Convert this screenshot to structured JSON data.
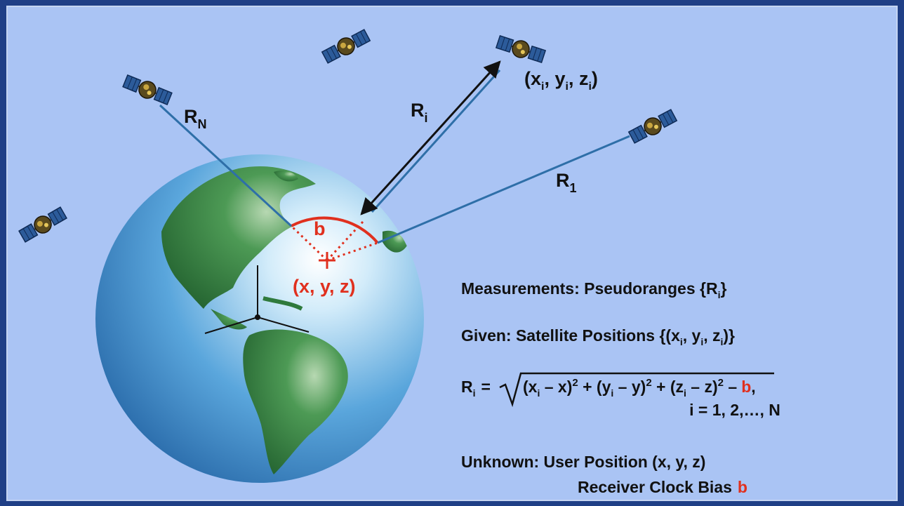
{
  "colors": {
    "frame": "#1f3f86",
    "panel": "#aac4f4",
    "ocean": "#3f8fcf",
    "land": "#2f7a3c",
    "ray": "#2e6fa8",
    "accent": "#e0301e",
    "text": "#111111"
  },
  "satellites": [
    {
      "id": "sat-n",
      "icon": "satellite-icon"
    },
    {
      "id": "sat-top",
      "icon": "satellite-icon"
    },
    {
      "id": "sat-i",
      "icon": "satellite-icon"
    },
    {
      "id": "sat-1",
      "icon": "satellite-icon"
    },
    {
      "id": "sat-left",
      "icon": "satellite-icon"
    }
  ],
  "labels": {
    "range_n": {
      "base": "R",
      "sub": "N"
    },
    "range_i": {
      "base": "R",
      "sub": "i"
    },
    "range_1": {
      "base": "R",
      "sub": "1"
    },
    "sat_position": {
      "open": "(x",
      "sub1": "i",
      "mid1": ", y",
      "sub2": "i",
      "mid2": ", z",
      "sub3": "i",
      "close": ")"
    },
    "bias": "b",
    "user_position": "(x, y, z)"
  },
  "text_panel": {
    "measurements": {
      "prefix": "Measurements: Pseudoranges {R",
      "sub": "i",
      "suffix": "}"
    },
    "given": {
      "prefix": "Given: Satellite Positions {(x",
      "sub1": "i",
      "mid1": ", y",
      "sub2": "i",
      "mid2": ", z",
      "sub3": "i",
      "suffix": ")}"
    },
    "equation": {
      "lhs": "R",
      "lhs_sub": "i",
      "equals": "=",
      "t1": "(x",
      "t1_sub": "i",
      "t1_rest": " – x)",
      "exp": "2",
      "plus1": " + (y",
      "t2_sub": "i",
      "t2_rest": " – y)",
      "plus2": " + (z",
      "t3_sub": "i",
      "t3_rest": " – z)",
      "minus": " –",
      "bias": "b",
      "comma": ",",
      "index_line": "i = 1, 2,…, N"
    },
    "unknown": {
      "line1": "Unknown: User Position (x, y, z)",
      "line2": "Receiver Clock Bias",
      "bias": "b"
    }
  }
}
